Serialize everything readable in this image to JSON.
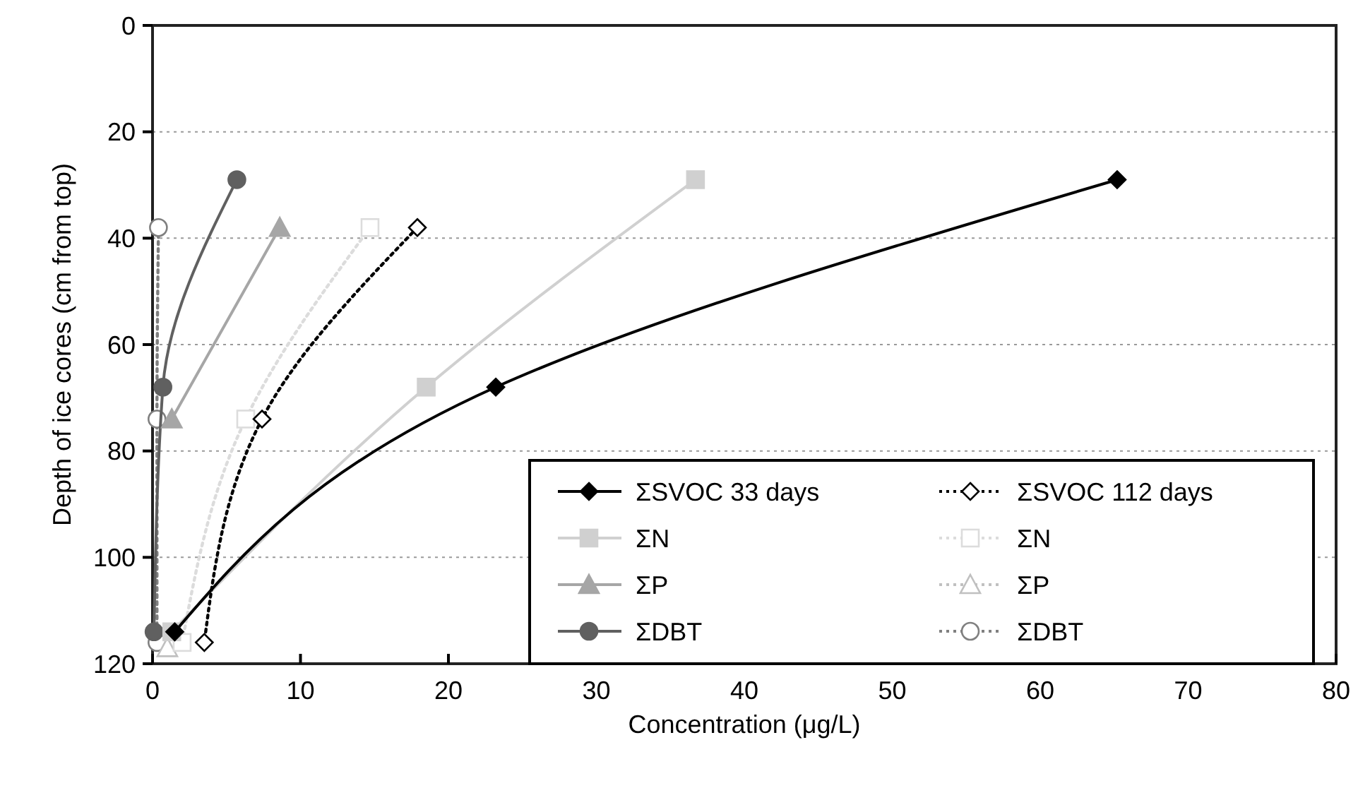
{
  "chart_data": {
    "type": "line",
    "xlabel": "Concentration (μg/L)",
    "ylabel": "Depth of ice cores (cm from top)",
    "xlim": [
      0,
      80
    ],
    "xticks": [
      0,
      10,
      20,
      30,
      40,
      50,
      60,
      70,
      80
    ],
    "ylim": [
      120,
      0
    ],
    "yticks": [
      0,
      20,
      40,
      60,
      80,
      100,
      120
    ],
    "grid": "y",
    "legend": "bottom right",
    "series": [
      {
        "name": "ΣSVOC 33 days",
        "color": "#000000",
        "marker": "diamond",
        "line_style": "solid",
        "x": [
          65.2,
          23.2,
          1.5
        ],
        "values": [
          29,
          68,
          114
        ]
      },
      {
        "name": "ΣSVOC 112 days",
        "color": "#000000",
        "marker": "diamond",
        "line_style": "dotted",
        "x": [
          17.9,
          7.4,
          3.5
        ],
        "values": [
          38,
          74,
          116
        ]
      },
      {
        "name": "ΣN",
        "color": "#d0d0d0",
        "marker": "square",
        "line_style": "solid",
        "x": [
          36.7,
          18.5,
          1.3
        ],
        "values": [
          29,
          68,
          114
        ]
      },
      {
        "name": "ΣN",
        "color": "#dcdcdc",
        "marker": "square",
        "line_style": "dotted",
        "x": [
          14.7,
          6.3,
          2.0
        ],
        "values": [
          38,
          74,
          116
        ]
      },
      {
        "name": "ΣP",
        "color": "#a6a6a6",
        "marker": "triangle",
        "line_style": "solid",
        "x": [
          8.6,
          1.3
        ],
        "values": [
          38,
          74
        ]
      },
      {
        "name": "ΣP",
        "color": "#c0c0c0",
        "marker": "triangle",
        "line_style": "dotted",
        "x": [
          1.0
        ],
        "values": [
          117
        ]
      },
      {
        "name": "ΣDBT",
        "color": "#606060",
        "marker": "circle",
        "line_style": "solid",
        "x": [
          5.7,
          0.7,
          0.1
        ],
        "values": [
          29,
          68,
          114
        ]
      },
      {
        "name": "ΣDBT",
        "color": "#808080",
        "marker": "circle",
        "line_style": "dotted",
        "x": [
          0.4,
          0.3,
          0.3
        ],
        "values": [
          38,
          74,
          116
        ]
      }
    ]
  }
}
